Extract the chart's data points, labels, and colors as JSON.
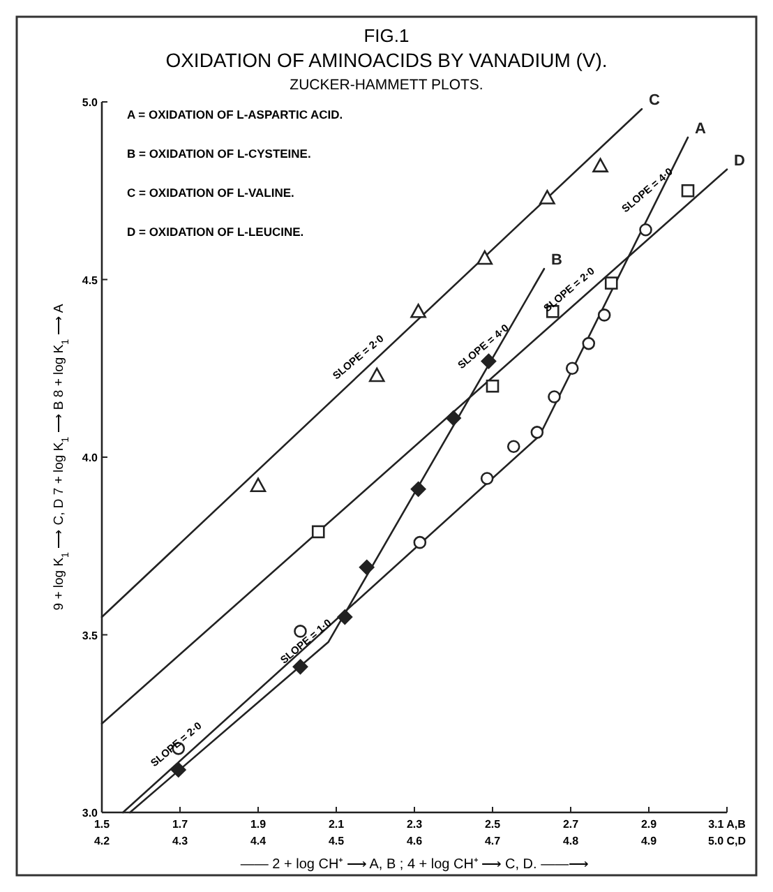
{
  "chart_data": {
    "type": "line",
    "title": "FIG.1",
    "subtitle": "OXIDATION OF AMINOACIDS BY VANADIUM (V).",
    "xlabel": "—— 2 + log CH⁺ ⟶ A, B ;  4 + log CH⁺ ⟶ C, D. ——⟶",
    "ylabel": "9 + log K$_{1}$ ⟶ C, D      7 + log K$_{1}$ ⟶ B      8 + log K$_{1}$ ⟶ A",
    "xlim": [
      4.2,
      5.0
    ],
    "xticks": [
      4.2,
      4.3,
      4.4,
      4.5,
      4.6,
      4.7,
      4.8,
      4.9,
      {
        "value": 5.0,
        "label": "5.0 C,D"
      }
    ],
    "x2lim": [
      1.5,
      3.1
    ],
    "x2ticks": [
      1.5,
      1.7,
      1.9,
      2.1,
      2.3,
      2.5,
      2.7,
      2.9,
      {
        "value": 3.1,
        "label": "3.1 A,B"
      }
    ],
    "ylim": [
      3.0,
      5.0
    ],
    "yticks": [
      {
        "value": 3.0,
        "label": "3.0"
      },
      {
        "value": 3.5,
        "label": "3.5"
      },
      {
        "value": 4.0,
        "label": "4.0"
      },
      {
        "value": 4.5,
        "label": "4.5"
      },
      {
        "value": 5.0,
        "label": "5.0"
      }
    ],
    "grid": false,
    "legend": false,
    "series": [
      {
        "name": "A",
        "marker": "none",
        "color": "#222222",
        "x": [
          4.227,
          4.76,
          4.95
        ],
        "values": [
          3.0,
          4.06,
          4.9
        ]
      },
      {
        "name": "B",
        "marker": "none",
        "color": "#222222",
        "x": [
          4.236,
          4.49,
          4.766
        ],
        "values": [
          3.0,
          3.48,
          4.53
        ]
      },
      {
        "name": "C",
        "marker": "none",
        "color": "#222222",
        "x": [
          4.2,
          4.891
        ],
        "values": [
          3.55,
          4.98
        ]
      },
      {
        "name": "D",
        "marker": "none",
        "color": "#222222",
        "x": [
          4.2,
          5.0
        ],
        "values": [
          3.25,
          4.81
        ]
      },
      {
        "type": "scatter",
        "marker": "circle",
        "color": "#222222",
        "x": [
          4.298,
          4.454,
          4.607,
          4.693,
          4.727,
          4.757,
          4.779,
          4.802,
          4.823,
          4.843,
          4.896
        ],
        "values": [
          3.18,
          3.51,
          3.76,
          3.94,
          4.03,
          4.07,
          4.17,
          4.25,
          4.32,
          4.4,
          4.64
        ]
      },
      {
        "type": "scatter",
        "marker": "diamond",
        "color": "#222222",
        "x": [
          4.298,
          4.454,
          4.511,
          4.539,
          4.605,
          4.65,
          4.695
        ],
        "values": [
          3.12,
          3.41,
          3.55,
          3.69,
          3.91,
          4.11,
          4.27
        ]
      },
      {
        "type": "scatter",
        "marker": "triangle",
        "color": "#222222",
        "x": [
          4.4,
          4.552,
          4.605,
          4.69,
          4.77,
          4.838
        ],
        "values": [
          3.92,
          4.23,
          4.41,
          4.56,
          4.73,
          4.82
        ]
      },
      {
        "type": "scatter",
        "marker": "square",
        "color": "#222222",
        "x": [
          4.477,
          4.7,
          4.777,
          4.852,
          4.95
        ],
        "values": [
          3.79,
          4.2,
          4.41,
          4.49,
          4.75
        ]
      }
    ],
    "annotations": [
      "ZUCKER-HAMMETT PLOTS.",
      "A = OXIDATION OF L-ASPARTIC ACID.",
      "B = OXIDATION OF L-CYSTEINE.",
      "C = OXIDATION OF L-VALINE.",
      "D = OXIDATION OF L-LEUCINE.",
      {
        "text": "SLOPE = 2·0",
        "x": 4.54,
        "y": 4.25
      },
      {
        "text": "SLOPE = 4·0",
        "x": 4.7,
        "y": 4.28
      },
      {
        "text": "SLOPE = 2·0",
        "x": 4.81,
        "y": 4.44
      },
      {
        "text": "SLOPE = 4·0",
        "x": 4.91,
        "y": 4.72
      },
      {
        "text": "SLOPE = 2·0",
        "x": 4.307,
        "y": 3.16
      },
      {
        "text": "SLOPE = 1·0",
        "x": 4.473,
        "y": 3.45
      }
    ]
  }
}
